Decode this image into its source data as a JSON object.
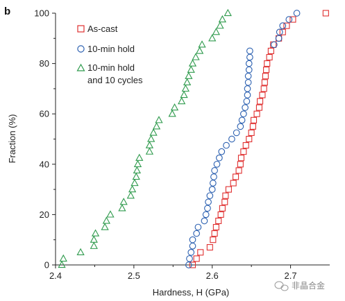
{
  "panel_label": "b",
  "watermark": {
    "icon": "wechat-icon",
    "text": "非晶合金"
  },
  "chart_data": {
    "type": "scatter",
    "title": "",
    "xlabel": "Hardness, H (GPa)",
    "ylabel": "Fraction (%)",
    "xlim": [
      2.4,
      2.75
    ],
    "ylim": [
      0,
      100
    ],
    "xticks": [
      2.4,
      2.5,
      2.6,
      2.7
    ],
    "yticks": [
      0,
      20,
      40,
      60,
      80,
      100
    ],
    "grid": false,
    "legend_position": "top-right",
    "series": [
      {
        "name": "As-cast",
        "marker": "square",
        "color": "#e03030",
        "points": [
          [
            2.575,
            0
          ],
          [
            2.58,
            2.5
          ],
          [
            2.585,
            5
          ],
          [
            2.597,
            7
          ],
          [
            2.601,
            10
          ],
          [
            2.603,
            12.5
          ],
          [
            2.605,
            15
          ],
          [
            2.608,
            17.5
          ],
          [
            2.611,
            20
          ],
          [
            2.613,
            22.5
          ],
          [
            2.616,
            25
          ],
          [
            2.617,
            27.5
          ],
          [
            2.621,
            30
          ],
          [
            2.627,
            32.5
          ],
          [
            2.63,
            35
          ],
          [
            2.634,
            37.5
          ],
          [
            2.636,
            40
          ],
          [
            2.637,
            42.5
          ],
          [
            2.64,
            45
          ],
          [
            2.643,
            47.5
          ],
          [
            2.647,
            50
          ],
          [
            2.65,
            52.5
          ],
          [
            2.652,
            55
          ],
          [
            2.653,
            57.5
          ],
          [
            2.657,
            60
          ],
          [
            2.66,
            62.5
          ],
          [
            2.661,
            65
          ],
          [
            2.664,
            67.5
          ],
          [
            2.666,
            70
          ],
          [
            2.667,
            72.5
          ],
          [
            2.668,
            75
          ],
          [
            2.669,
            77.5
          ],
          [
            2.67,
            80
          ],
          [
            2.673,
            82.5
          ],
          [
            2.675,
            85
          ],
          [
            2.678,
            87.5
          ],
          [
            2.685,
            90
          ],
          [
            2.69,
            92.5
          ],
          [
            2.695,
            95
          ],
          [
            2.703,
            97.5
          ],
          [
            2.745,
            100
          ]
        ]
      },
      {
        "name": "10-min hold",
        "marker": "circle",
        "color": "#2a5fb0",
        "points": [
          [
            2.57,
            0
          ],
          [
            2.571,
            2.5
          ],
          [
            2.573,
            5
          ],
          [
            2.575,
            7.5
          ],
          [
            2.575,
            10
          ],
          [
            2.58,
            12.5
          ],
          [
            2.582,
            15
          ],
          [
            2.59,
            17.5
          ],
          [
            2.592,
            20
          ],
          [
            2.594,
            22.5
          ],
          [
            2.595,
            25
          ],
          [
            2.597,
            27.5
          ],
          [
            2.6,
            30
          ],
          [
            2.601,
            32.5
          ],
          [
            2.602,
            35
          ],
          [
            2.603,
            37.5
          ],
          [
            2.606,
            40
          ],
          [
            2.609,
            42.5
          ],
          [
            2.612,
            45
          ],
          [
            2.618,
            47.5
          ],
          [
            2.625,
            50
          ],
          [
            2.631,
            52.5
          ],
          [
            2.636,
            55
          ],
          [
            2.638,
            57.5
          ],
          [
            2.64,
            60
          ],
          [
            2.642,
            62.5
          ],
          [
            2.644,
            65
          ],
          [
            2.645,
            67.5
          ],
          [
            2.645,
            70
          ],
          [
            2.646,
            72.5
          ],
          [
            2.646,
            75
          ],
          [
            2.647,
            77.5
          ],
          [
            2.647,
            80
          ],
          [
            2.648,
            82.5
          ],
          [
            2.648,
            85
          ],
          [
            2.679,
            87.5
          ],
          [
            2.685,
            90
          ],
          [
            2.686,
            92.5
          ],
          [
            2.69,
            95
          ],
          [
            2.698,
            97.5
          ],
          [
            2.708,
            100
          ]
        ]
      },
      {
        "name": "10-min hold and 10 cycles",
        "legend_lines": [
          "10-min hold",
          "and 10 cycles"
        ],
        "marker": "triangle",
        "color": "#2e9a4c",
        "points": [
          [
            2.408,
            0
          ],
          [
            2.41,
            2.5
          ],
          [
            2.432,
            5
          ],
          [
            2.449,
            7.5
          ],
          [
            2.449,
            10
          ],
          [
            2.451,
            12.5
          ],
          [
            2.463,
            15
          ],
          [
            2.465,
            17.5
          ],
          [
            2.47,
            20
          ],
          [
            2.485,
            22.5
          ],
          [
            2.487,
            25
          ],
          [
            2.496,
            27.5
          ],
          [
            2.498,
            30
          ],
          [
            2.501,
            32.5
          ],
          [
            2.503,
            35
          ],
          [
            2.504,
            37.5
          ],
          [
            2.505,
            40
          ],
          [
            2.507,
            42.5
          ],
          [
            2.52,
            45
          ],
          [
            2.52,
            47.5
          ],
          [
            2.522,
            50
          ],
          [
            2.525,
            52.5
          ],
          [
            2.529,
            55
          ],
          [
            2.532,
            57.5
          ],
          [
            2.549,
            60
          ],
          [
            2.552,
            62.5
          ],
          [
            2.561,
            65
          ],
          [
            2.564,
            67.5
          ],
          [
            2.566,
            70
          ],
          [
            2.568,
            72.5
          ],
          [
            2.57,
            75
          ],
          [
            2.573,
            77.5
          ],
          [
            2.575,
            80
          ],
          [
            2.579,
            82.5
          ],
          [
            2.584,
            85
          ],
          [
            2.587,
            87.5
          ],
          [
            2.6,
            90
          ],
          [
            2.605,
            92.5
          ],
          [
            2.61,
            95
          ],
          [
            2.613,
            97.5
          ],
          [
            2.62,
            100
          ]
        ]
      }
    ]
  }
}
